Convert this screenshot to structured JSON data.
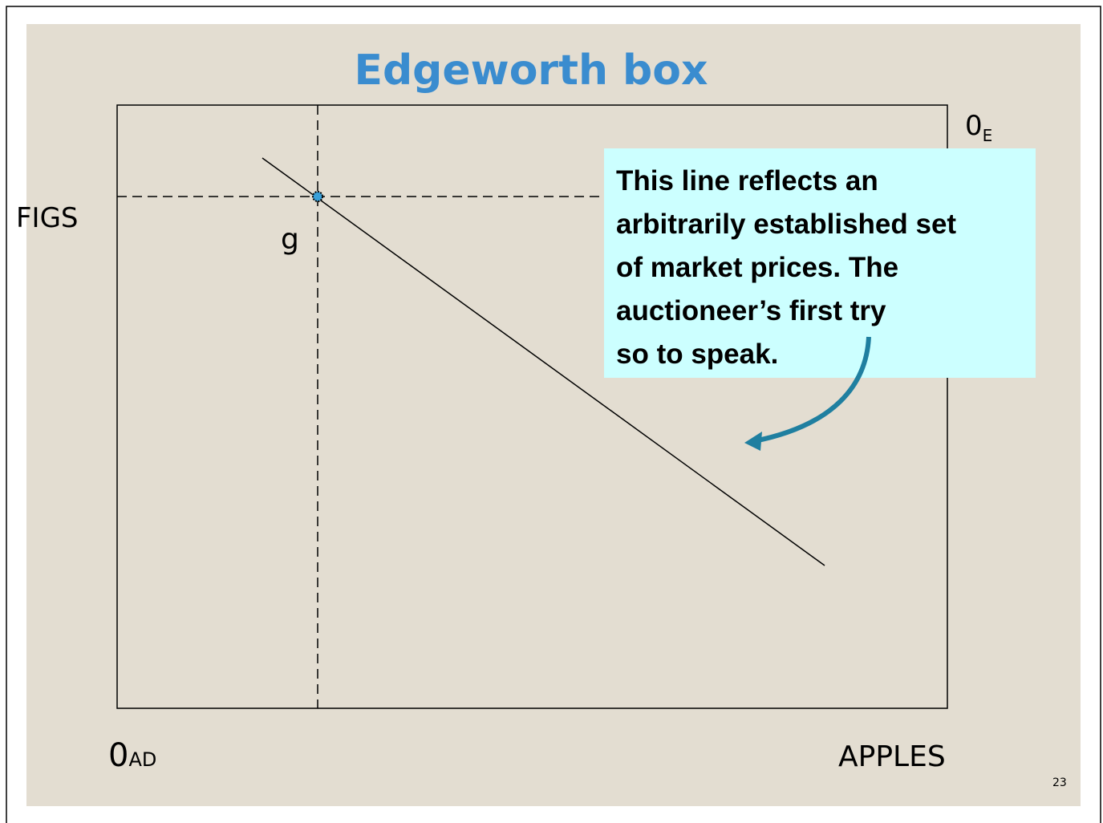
{
  "title": "Edgeworth box",
  "axes": {
    "y_label": "FIGS",
    "x_label": "APPLES",
    "origin_ad": {
      "main": "0",
      "sub": "AD"
    },
    "origin_e": {
      "main": "0",
      "sub": "E"
    }
  },
  "point_label": "g",
  "callout": {
    "lines": [
      "This line reflects an",
      "arbitrarily established set",
      "of market prices. The",
      "auctioneer’s first try",
      "so to speak."
    ]
  },
  "page_number": "23"
}
